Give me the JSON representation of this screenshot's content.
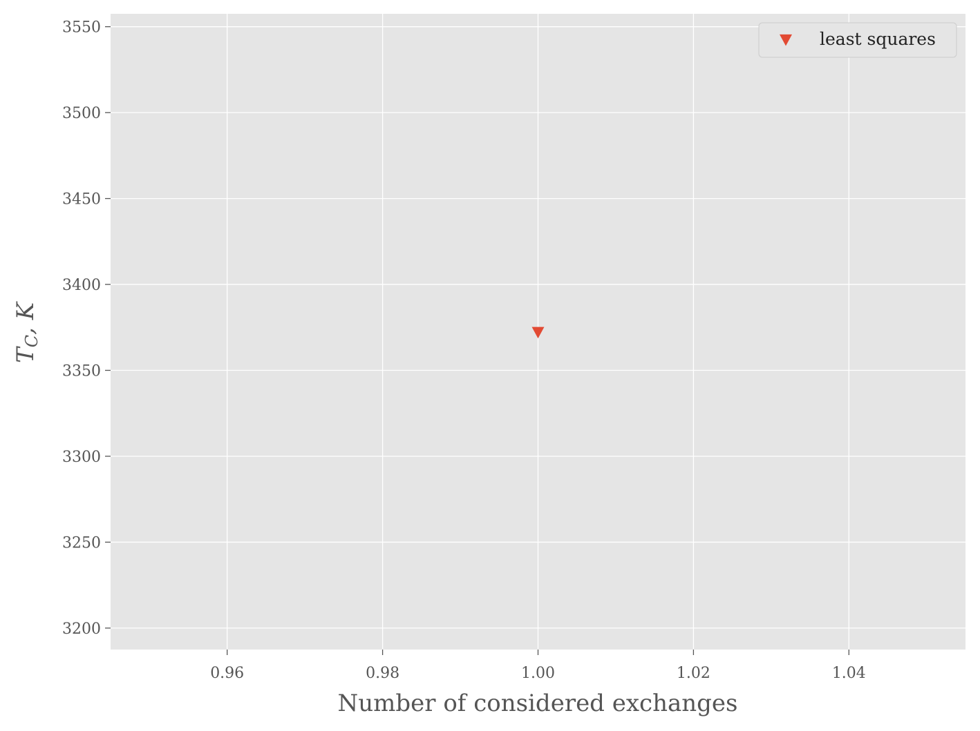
{
  "chart_data": {
    "type": "scatter",
    "xlabel": "Number of considered exchanges",
    "ylabel": {
      "main": "T",
      "sub": "C",
      "rest": ", K"
    },
    "xlim": [
      0.945,
      1.055
    ],
    "ylim": [
      3187.5,
      3557.5
    ],
    "x_ticks": [
      "0.96",
      "0.98",
      "1.00",
      "1.02",
      "1.04"
    ],
    "y_ticks": [
      "3200",
      "3250",
      "3300",
      "3350",
      "3400",
      "3450",
      "3500",
      "3550"
    ],
    "grid": true,
    "legend_position": "top-right",
    "series": [
      {
        "name": "least squares",
        "marker": "triangle-down",
        "color": "#E24A33",
        "x": [
          1.0
        ],
        "y": [
          3372
        ]
      }
    ]
  },
  "colors": {
    "plot_background": "#E5E5E5",
    "grid": "#FFFFFF",
    "text": "#555555"
  }
}
